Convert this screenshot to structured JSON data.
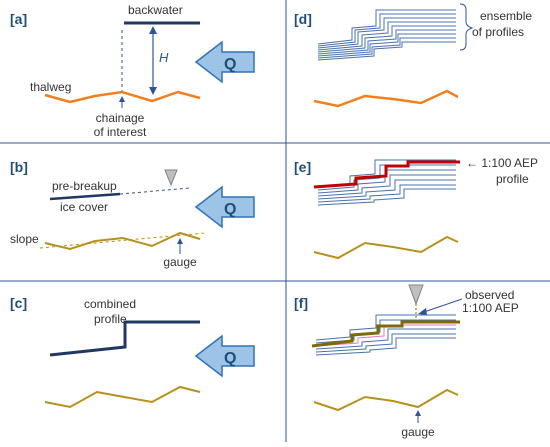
{
  "colors": {
    "divider": "#2f5597",
    "thalweg_orange": "#f07f20",
    "bed_gold": "#b8901e",
    "profile_dark": "#203864",
    "ensemble_blue": "#4a72b0",
    "aep_red": "#c00000",
    "arrow_fill": "#9dc3e6",
    "arrow_stroke": "#2e75b6",
    "marker_gray": "#a6a6a6",
    "observed_olive": "#7f6a00"
  },
  "panels": {
    "a": {
      "label": "[a]",
      "backwater": "backwater",
      "H": "H",
      "Q": "Q",
      "thalweg": "thalweg",
      "chainage_line1": "chainage",
      "chainage_line2": "of interest"
    },
    "b": {
      "label": "[b]",
      "prebreakup": "pre-breakup",
      "icecover": "ice cover",
      "slope": "slope",
      "gauge": "gauge",
      "Q": "Q"
    },
    "c": {
      "label": "[c]",
      "combined_line1": "combined",
      "combined_line2": "profile",
      "Q": "Q"
    },
    "d": {
      "label": "[d]",
      "ensemble_line1": "ensemble",
      "ensemble_line2": "of profiles"
    },
    "e": {
      "label": "[e]",
      "aep_line1": "← 1:100 AEP",
      "aep_line2": "profile"
    },
    "f": {
      "label": "[f]",
      "observed": "observed",
      "aep": "1:100 AEP",
      "gauge": "gauge"
    }
  }
}
